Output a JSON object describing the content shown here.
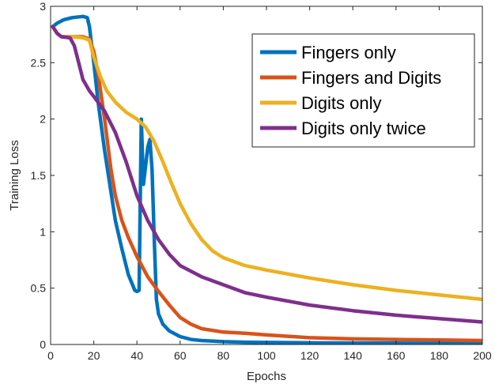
{
  "chart_data": {
    "type": "line",
    "title": "",
    "xlabel": "Epochs",
    "ylabel": "Training Loss",
    "xlim": [
      0,
      200
    ],
    "ylim": [
      0,
      3
    ],
    "xticks": [
      0,
      20,
      40,
      60,
      80,
      100,
      120,
      140,
      160,
      180,
      200
    ],
    "yticks": [
      0,
      0.5,
      1,
      1.5,
      2,
      2.5,
      3
    ],
    "xtick_labels": [
      "0",
      "20",
      "40",
      "60",
      "80",
      "100",
      "120",
      "140",
      "160",
      "180",
      "200"
    ],
    "ytick_labels": [
      "0",
      "0.5",
      "1",
      "1.5",
      "2",
      "2.5",
      "3"
    ],
    "grid": false,
    "legend_position": "top-right",
    "series": [
      {
        "name": "Fingers only",
        "color": "#0072BD",
        "x": [
          1,
          3,
          6,
          10,
          15,
          17,
          18,
          20,
          22,
          25,
          28,
          30,
          33,
          36,
          39,
          40,
          41,
          42,
          43,
          45,
          46,
          47,
          48,
          49,
          50,
          52,
          55,
          60,
          65,
          70,
          80,
          90,
          100,
          120,
          140,
          160,
          180,
          200
        ],
        "y": [
          2.82,
          2.85,
          2.88,
          2.9,
          2.91,
          2.9,
          2.82,
          2.5,
          2.15,
          1.72,
          1.35,
          1.1,
          0.85,
          0.62,
          0.48,
          0.47,
          0.48,
          2.0,
          1.42,
          1.75,
          1.82,
          1.55,
          0.95,
          0.4,
          0.27,
          0.18,
          0.12,
          0.07,
          0.045,
          0.035,
          0.025,
          0.02,
          0.018,
          0.015,
          0.013,
          0.012,
          0.011,
          0.01
        ]
      },
      {
        "name": "Fingers and Digits",
        "color": "#D95319",
        "x": [
          1,
          3,
          5,
          10,
          15,
          18,
          20,
          22,
          25,
          28,
          30,
          33,
          36,
          40,
          45,
          50,
          55,
          60,
          65,
          70,
          80,
          90,
          100,
          120,
          140,
          160,
          180,
          200
        ],
        "y": [
          2.82,
          2.76,
          2.73,
          2.73,
          2.73,
          2.71,
          2.6,
          2.4,
          2.0,
          1.55,
          1.32,
          1.1,
          0.95,
          0.78,
          0.6,
          0.47,
          0.35,
          0.24,
          0.18,
          0.14,
          0.11,
          0.1,
          0.085,
          0.06,
          0.05,
          0.045,
          0.04,
          0.035
        ]
      },
      {
        "name": "Digits only",
        "color": "#EDB120",
        "x": [
          1,
          3,
          5,
          10,
          15,
          18,
          20,
          23,
          26,
          30,
          35,
          40,
          44,
          48,
          52,
          56,
          60,
          65,
          70,
          75,
          80,
          90,
          100,
          120,
          140,
          160,
          180,
          200
        ],
        "y": [
          2.82,
          2.76,
          2.73,
          2.73,
          2.72,
          2.7,
          2.55,
          2.38,
          2.25,
          2.15,
          2.06,
          2.0,
          1.93,
          1.8,
          1.62,
          1.43,
          1.25,
          1.07,
          0.93,
          0.83,
          0.77,
          0.7,
          0.66,
          0.59,
          0.53,
          0.48,
          0.44,
          0.4
        ]
      },
      {
        "name": "Digits only twice",
        "color": "#7E2F8E",
        "x": [
          1,
          3,
          5,
          9,
          11,
          13,
          15,
          18,
          20,
          25,
          30,
          35,
          40,
          45,
          50,
          55,
          60,
          70,
          80,
          90,
          100,
          120,
          140,
          160,
          180,
          200
        ],
        "y": [
          2.82,
          2.76,
          2.73,
          2.72,
          2.65,
          2.5,
          2.35,
          2.25,
          2.2,
          2.07,
          1.88,
          1.62,
          1.32,
          1.1,
          0.93,
          0.8,
          0.7,
          0.6,
          0.53,
          0.46,
          0.42,
          0.35,
          0.3,
          0.26,
          0.23,
          0.2
        ]
      }
    ]
  }
}
